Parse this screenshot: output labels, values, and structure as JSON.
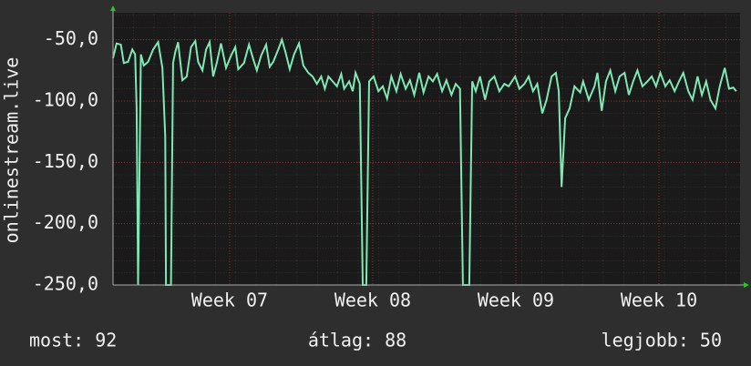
{
  "chart_data": {
    "type": "line",
    "ylabel": "onlinestream.live",
    "xlim": [
      6.185,
      10.567
    ],
    "ylim": [
      -250,
      -28
    ],
    "xticks": [
      {
        "value": 7,
        "label": "Week 07"
      },
      {
        "value": 8,
        "label": "Week 08"
      },
      {
        "value": 9,
        "label": "Week 09"
      },
      {
        "value": 10,
        "label": "Week 10"
      }
    ],
    "yticks": [
      {
        "value": -250,
        "label": "-250,0"
      },
      {
        "value": -200,
        "label": "-200,0"
      },
      {
        "value": -150,
        "label": "-150,0"
      },
      {
        "value": -100,
        "label": "-100,0"
      },
      {
        "value": -50,
        "label": "-50,0"
      }
    ],
    "grid": true,
    "series": [
      {
        "color": "#7fe8b4",
        "x": [
          6.185,
          6.21,
          6.24,
          6.26,
          6.29,
          6.32,
          6.34,
          6.35,
          6.36,
          6.38,
          6.4,
          6.43,
          6.465,
          6.5,
          6.53,
          6.55,
          6.555,
          6.59,
          6.605,
          6.62,
          6.64,
          6.67,
          6.7,
          6.73,
          6.76,
          6.78,
          6.81,
          6.835,
          6.86,
          6.885,
          6.91,
          6.94,
          6.975,
          7.01,
          7.04,
          7.06,
          7.1,
          7.135,
          7.165,
          7.19,
          7.22,
          7.255,
          7.28,
          7.305,
          7.34,
          7.365,
          7.39,
          7.42,
          7.45,
          7.485,
          7.515,
          7.55,
          7.58,
          7.61,
          7.64,
          7.665,
          7.69,
          7.72,
          7.75,
          7.78,
          7.8,
          7.835,
          7.86,
          7.88,
          7.91,
          7.93,
          7.955,
          7.975,
          8.006,
          8.04,
          8.07,
          8.1,
          8.13,
          8.165,
          8.195,
          8.23,
          8.26,
          8.29,
          8.325,
          8.355,
          8.39,
          8.42,
          8.45,
          8.485,
          8.515,
          8.55,
          8.58,
          8.61,
          8.63,
          8.675,
          8.695,
          8.72,
          8.75,
          8.785,
          8.815,
          8.85,
          8.885,
          8.92,
          8.95,
          8.995,
          9.025,
          9.06,
          9.09,
          9.12,
          9.15,
          9.185,
          9.215,
          9.25,
          9.28,
          9.3,
          9.32,
          9.345,
          9.376,
          9.41,
          9.45,
          9.47,
          9.51,
          9.55,
          9.57,
          9.6,
          9.63,
          9.66,
          9.695,
          9.725,
          9.76,
          9.79,
          9.82,
          9.85,
          9.885,
          9.92,
          9.95,
          9.98,
          10.01,
          10.045,
          10.075,
          10.11,
          10.14,
          10.17,
          10.205,
          10.235,
          10.27,
          10.3,
          10.33,
          10.36,
          10.395,
          10.425,
          10.46,
          10.49,
          10.52,
          10.54
        ],
        "values": [
          -65,
          -53,
          -54,
          -69,
          -68,
          -58,
          -62,
          -106,
          -250,
          -62,
          -71,
          -68,
          -58,
          -52,
          -73,
          -129,
          -250,
          -250,
          -69,
          -60,
          -52,
          -83,
          -80,
          -56,
          -51,
          -68,
          -75,
          -58,
          -52,
          -80,
          -69,
          -53,
          -73,
          -63,
          -56,
          -74,
          -69,
          -54,
          -66,
          -75,
          -63,
          -54,
          -72,
          -68,
          -58,
          -50,
          -60,
          -74,
          -62,
          -53,
          -71,
          -77,
          -80,
          -86,
          -80,
          -90,
          -80,
          -84,
          -88,
          -78,
          -90,
          -84,
          -92,
          -77,
          -86,
          -250,
          -250,
          -84,
          -80,
          -92,
          -88,
          -98,
          -80,
          -92,
          -78,
          -90,
          -83,
          -95,
          -77,
          -93,
          -80,
          -84,
          -78,
          -92,
          -83,
          -95,
          -86,
          -90,
          -250,
          -250,
          -84,
          -92,
          -80,
          -99,
          -84,
          -80,
          -92,
          -86,
          -88,
          -80,
          -90,
          -86,
          -80,
          -92,
          -86,
          -110,
          -99,
          -80,
          -77,
          -92,
          -170,
          -114,
          -106,
          -88,
          -93,
          -84,
          -99,
          -88,
          -77,
          -108,
          -84,
          -75,
          -92,
          -80,
          -77,
          -95,
          -84,
          -75,
          -88,
          -84,
          -80,
          -88,
          -77,
          -88,
          -83,
          -92,
          -84,
          -77,
          -92,
          -99,
          -80,
          -95,
          -84,
          -99,
          -106,
          -88,
          -73,
          -90,
          -89,
          -92
        ]
      }
    ],
    "footer": [
      "most: 92",
      "átlag: 88",
      "legjobb: 50"
    ]
  }
}
